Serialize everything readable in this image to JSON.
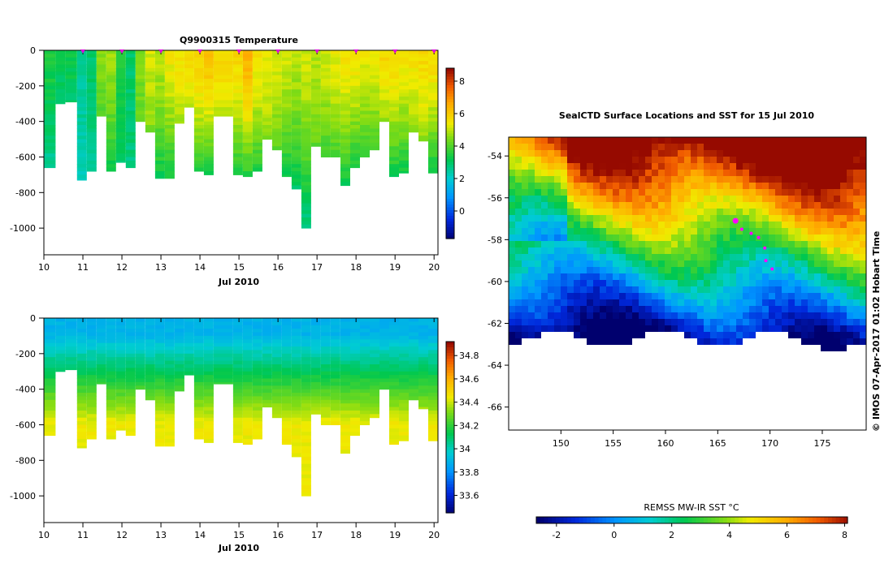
{
  "chart_data": [
    {
      "type": "heatmap",
      "title": "Q9900315  Temperature",
      "xlabel": "Jul 2010",
      "ylabel": "",
      "x_ticks": [
        "10",
        "11",
        "12",
        "13",
        "14",
        "15",
        "16",
        "17",
        "18",
        "19",
        "20"
      ],
      "y_ticks": [
        "0",
        "-200",
        "-400",
        "-600",
        "-800",
        "-1000"
      ],
      "xlim": [
        10,
        20.1
      ],
      "ylim": [
        -1150,
        0
      ],
      "colorbar": {
        "ticks": [
          "8",
          "6",
          "4",
          "2",
          "0"
        ],
        "range": [
          -1.7,
          8.8
        ]
      },
      "profile_markers": [
        11,
        12,
        13,
        14,
        15,
        16,
        17,
        18,
        19,
        20
      ],
      "profiles": [
        {
          "t": 10.0,
          "depth": 660,
          "surface": 3.5,
          "deep": 2.5
        },
        {
          "t": 10.3,
          "depth": 300,
          "surface": 3.2,
          "deep": 3.0
        },
        {
          "t": 10.55,
          "depth": 290,
          "surface": 3.3,
          "deep": 3.0
        },
        {
          "t": 10.85,
          "depth": 730,
          "surface": 2.6,
          "deep": 2.4
        },
        {
          "t": 11.1,
          "depth": 680,
          "surface": 3.0,
          "deep": 2.6
        },
        {
          "t": 11.35,
          "depth": 370,
          "surface": 4.6,
          "deep": 4.0
        },
        {
          "t": 11.6,
          "depth": 680,
          "surface": 4.8,
          "deep": 3.2
        },
        {
          "t": 11.85,
          "depth": 630,
          "surface": 3.5,
          "deep": 3.0
        },
        {
          "t": 12.1,
          "depth": 660,
          "surface": 3.0,
          "deep": 2.8
        },
        {
          "t": 12.35,
          "depth": 400,
          "surface": 4.6,
          "deep": 4.2
        },
        {
          "t": 12.6,
          "depth": 460,
          "surface": 5.2,
          "deep": 4.5
        },
        {
          "t": 12.85,
          "depth": 720,
          "surface": 5.0,
          "deep": 3.2
        },
        {
          "t": 13.1,
          "depth": 720,
          "surface": 5.5,
          "deep": 3.2
        },
        {
          "t": 13.35,
          "depth": 410,
          "surface": 5.6,
          "deep": 4.8
        },
        {
          "t": 13.6,
          "depth": 320,
          "surface": 5.8,
          "deep": 5.0
        },
        {
          "t": 13.85,
          "depth": 680,
          "surface": 6.0,
          "deep": 3.4
        },
        {
          "t": 14.1,
          "depth": 700,
          "surface": 6.2,
          "deep": 3.3
        },
        {
          "t": 14.35,
          "depth": 370,
          "surface": 5.8,
          "deep": 5.0
        },
        {
          "t": 14.85,
          "depth": 700,
          "surface": 5.8,
          "deep": 3.4
        },
        {
          "t": 15.1,
          "depth": 710,
          "surface": 6.5,
          "deep": 3.5
        },
        {
          "t": 15.35,
          "depth": 680,
          "surface": 5.6,
          "deep": 3.5
        },
        {
          "t": 15.6,
          "depth": 500,
          "surface": 5.4,
          "deep": 4.6
        },
        {
          "t": 15.85,
          "depth": 560,
          "surface": 5.2,
          "deep": 4.2
        },
        {
          "t": 16.1,
          "depth": 710,
          "surface": 5.2,
          "deep": 3.2
        },
        {
          "t": 16.35,
          "depth": 780,
          "surface": 5.0,
          "deep": 3.0
        },
        {
          "t": 16.6,
          "depth": 1000,
          "surface": 5.2,
          "deep": 2.6
        },
        {
          "t": 16.85,
          "depth": 540,
          "surface": 5.0,
          "deep": 4.2
        },
        {
          "t": 17.1,
          "depth": 600,
          "surface": 5.2,
          "deep": 3.8
        },
        {
          "t": 17.35,
          "depth": 600,
          "surface": 5.4,
          "deep": 3.8
        },
        {
          "t": 17.6,
          "depth": 760,
          "surface": 5.6,
          "deep": 3.2
        },
        {
          "t": 17.85,
          "depth": 660,
          "surface": 5.6,
          "deep": 3.3
        },
        {
          "t": 18.1,
          "depth": 600,
          "surface": 5.4,
          "deep": 3.6
        },
        {
          "t": 18.35,
          "depth": 560,
          "surface": 5.4,
          "deep": 3.8
        },
        {
          "t": 18.6,
          "depth": 400,
          "surface": 5.8,
          "deep": 4.6
        },
        {
          "t": 18.85,
          "depth": 710,
          "surface": 5.8,
          "deep": 3.2
        },
        {
          "t": 19.1,
          "depth": 690,
          "surface": 5.6,
          "deep": 3.2
        },
        {
          "t": 19.35,
          "depth": 460,
          "surface": 5.6,
          "deep": 4.6
        },
        {
          "t": 19.6,
          "depth": 510,
          "surface": 5.8,
          "deep": 4.6
        },
        {
          "t": 19.85,
          "depth": 690,
          "surface": 5.8,
          "deep": 3.2
        }
      ]
    },
    {
      "type": "heatmap",
      "title": "",
      "xlabel": "Jul 2010",
      "ylabel": "",
      "x_ticks": [
        "10",
        "11",
        "12",
        "13",
        "14",
        "15",
        "16",
        "17",
        "18",
        "19",
        "20"
      ],
      "y_ticks": [
        "0",
        "-200",
        "-400",
        "-600",
        "-800",
        "-1000"
      ],
      "xlim": [
        10,
        20.1
      ],
      "ylim": [
        -1150,
        0
      ],
      "colorbar": {
        "ticks": [
          "34.8",
          "34.6",
          "34.4",
          "34.2",
          "34",
          "33.8",
          "33.6"
        ],
        "range": [
          33.45,
          34.92
        ]
      },
      "profiles_same_as_temperature": true,
      "surface_salinity": 33.9,
      "deep_salinity": 34.45
    },
    {
      "type": "heatmap",
      "title": "SealCTD Surface Locations and SST for 15 Jul 2010",
      "xlabel": "",
      "ylabel": "",
      "x_ticks": [
        "150",
        "155",
        "160",
        "165",
        "170",
        "175"
      ],
      "y_ticks": [
        "-54",
        "-56",
        "-58",
        "-60",
        "-62",
        "-64",
        "-66"
      ],
      "xlim": [
        145.0,
        179.2
      ],
      "ylim": [
        -67.1,
        -53.1
      ],
      "colorbar": {
        "label": "REMSS MW-IR SST °C",
        "ticks": [
          "-2",
          "0",
          "2",
          "4",
          "6",
          "8"
        ],
        "range": [
          -2.7,
          8.1
        ]
      },
      "track_points": [
        [
          166.7,
          -57.1
        ],
        [
          167.3,
          -57.5
        ],
        [
          168.2,
          -57.7
        ],
        [
          168.9,
          -57.9
        ],
        [
          169.5,
          -58.4
        ],
        [
          169.6,
          -59.0
        ],
        [
          170.2,
          -59.4
        ]
      ],
      "credit": "© IMOS 07-Apr-2017 01:02 Hobart Time"
    }
  ]
}
